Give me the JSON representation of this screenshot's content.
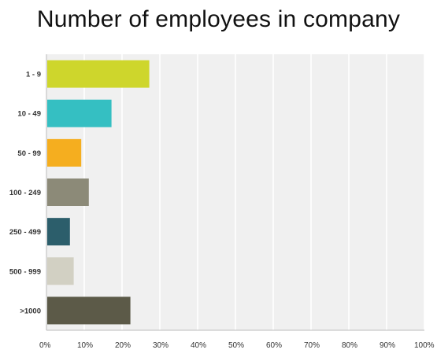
{
  "chart_data": {
    "type": "bar",
    "orientation": "horizontal",
    "title": "Number of employees in company",
    "categories": [
      "1 - 9",
      "10 - 49",
      "50 - 99",
      "100 - 249",
      "250 - 499",
      "500 - 999",
      ">1000"
    ],
    "values": [
      27,
      17,
      9,
      11,
      6,
      7,
      22
    ],
    "unit": "%",
    "xlim": [
      0,
      100
    ],
    "xticks": [
      "0%",
      "10%",
      "20%",
      "30%",
      "40%",
      "50%",
      "60%",
      "70%",
      "80%",
      "90%",
      "100%"
    ],
    "colors": [
      "#CED62C",
      "#35BFC2",
      "#F5AE1F",
      "#8C8A78",
      "#2C5E6B",
      "#D2D0C3",
      "#5C5A48"
    ],
    "grid": true,
    "legend": "none",
    "plot_background": "#F0F0F0"
  }
}
